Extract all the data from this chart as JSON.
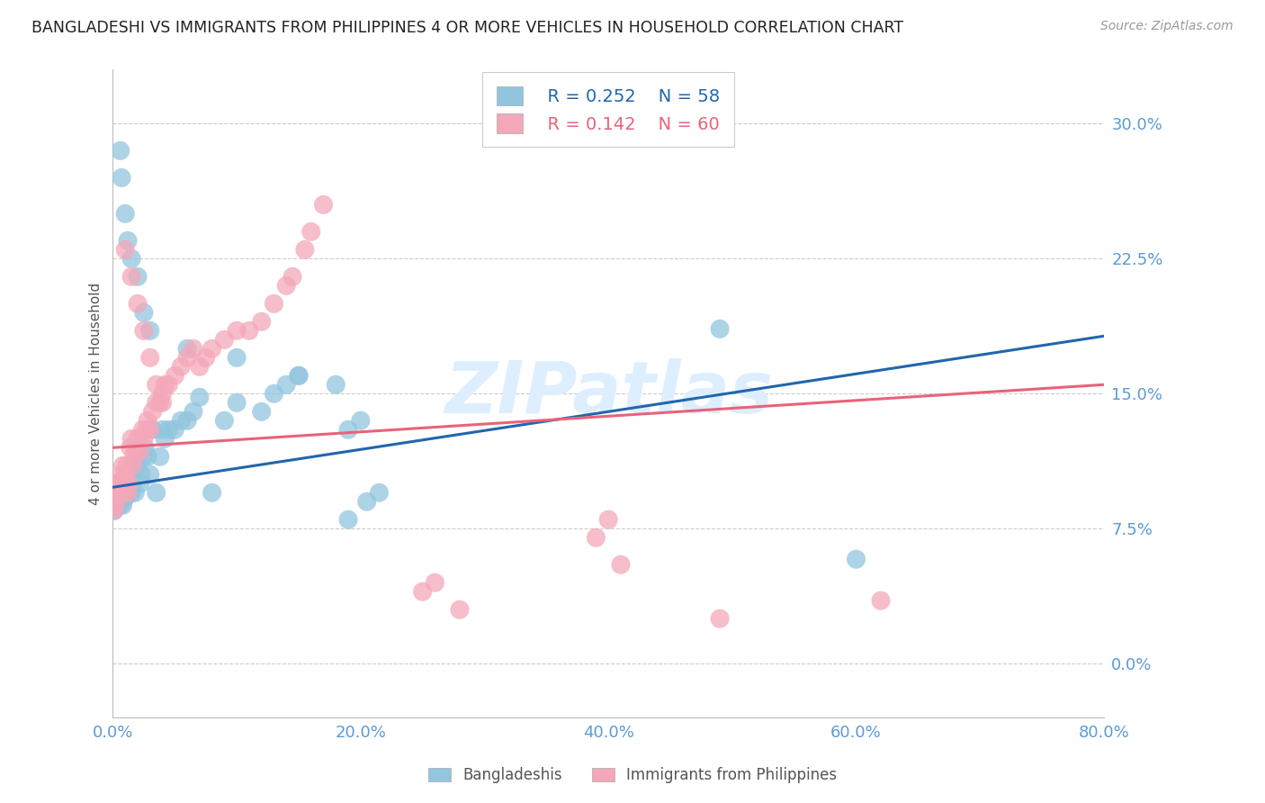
{
  "title": "BANGLADESHI VS IMMIGRANTS FROM PHILIPPINES 4 OR MORE VEHICLES IN HOUSEHOLD CORRELATION CHART",
  "source": "Source: ZipAtlas.com",
  "ylabel": "4 or more Vehicles in Household",
  "xlim": [
    0.0,
    0.8
  ],
  "ylim": [
    -0.03,
    0.33
  ],
  "y_tick_vals": [
    0.0,
    0.075,
    0.15,
    0.225,
    0.3
  ],
  "x_tick_vals": [
    0.0,
    0.2,
    0.4,
    0.6,
    0.8
  ],
  "y_tick_labels": [
    "0.0%",
    "7.5%",
    "15.0%",
    "22.5%",
    "30.0%"
  ],
  "x_tick_labels": [
    "0.0%",
    "20.0%",
    "40.0%",
    "60.0%",
    "80.0%"
  ],
  "legend_blue_R": "R = 0.252",
  "legend_blue_N": "N = 58",
  "legend_pink_R": "R = 0.142",
  "legend_pink_N": "N = 60",
  "legend_label_blue": "Bangladeshis",
  "legend_label_pink": "Immigrants from Philippines",
  "blue_color": "#92c5de",
  "pink_color": "#f4a7b9",
  "line_blue_color": "#2166ac",
  "line_pink_color": "#e8637a",
  "background_color": "#ffffff",
  "grid_color": "#cccccc",
  "tick_color": "#5b9bd5",
  "watermark_text": "ZIPatlas",
  "watermark_color": "#ddeeff",
  "watermark_fontsize": 58,
  "blue_line_start_y": 0.098,
  "blue_line_end_y": 0.182,
  "pink_line_start_y": 0.12,
  "pink_line_end_y": 0.155,
  "blue_x": [
    0.001,
    0.002,
    0.002,
    0.003,
    0.003,
    0.004,
    0.004,
    0.005,
    0.005,
    0.006,
    0.006,
    0.007,
    0.007,
    0.008,
    0.008,
    0.009,
    0.01,
    0.01,
    0.011,
    0.012,
    0.012,
    0.013,
    0.014,
    0.015,
    0.015,
    0.016,
    0.017,
    0.018,
    0.02,
    0.02,
    0.022,
    0.023,
    0.025,
    0.026,
    0.028,
    0.03,
    0.032,
    0.035,
    0.038,
    0.04,
    0.042,
    0.045,
    0.05,
    0.055,
    0.06,
    0.065,
    0.07,
    0.08,
    0.09,
    0.1,
    0.12,
    0.13,
    0.14,
    0.15,
    0.19,
    0.2,
    0.49,
    0.6
  ],
  "blue_y": [
    0.085,
    0.09,
    0.095,
    0.088,
    0.092,
    0.095,
    0.1,
    0.09,
    0.095,
    0.088,
    0.092,
    0.095,
    0.1,
    0.088,
    0.095,
    0.095,
    0.092,
    0.098,
    0.1,
    0.095,
    0.1,
    0.105,
    0.1,
    0.095,
    0.1,
    0.105,
    0.11,
    0.095,
    0.11,
    0.115,
    0.1,
    0.105,
    0.115,
    0.12,
    0.115,
    0.105,
    0.13,
    0.095,
    0.115,
    0.13,
    0.125,
    0.13,
    0.13,
    0.135,
    0.135,
    0.14,
    0.148,
    0.095,
    0.135,
    0.145,
    0.14,
    0.15,
    0.155,
    0.16,
    0.13,
    0.135,
    0.186,
    0.058
  ],
  "pink_x": [
    0.001,
    0.001,
    0.002,
    0.003,
    0.003,
    0.004,
    0.004,
    0.005,
    0.005,
    0.006,
    0.006,
    0.007,
    0.008,
    0.008,
    0.009,
    0.01,
    0.01,
    0.011,
    0.012,
    0.013,
    0.014,
    0.015,
    0.016,
    0.017,
    0.018,
    0.02,
    0.022,
    0.024,
    0.025,
    0.027,
    0.028,
    0.03,
    0.032,
    0.035,
    0.038,
    0.04,
    0.042,
    0.045,
    0.05,
    0.055,
    0.06,
    0.065,
    0.07,
    0.075,
    0.08,
    0.09,
    0.1,
    0.11,
    0.12,
    0.13,
    0.14,
    0.145,
    0.155,
    0.16,
    0.17,
    0.39,
    0.4,
    0.41,
    0.49,
    0.62
  ],
  "pink_y": [
    0.085,
    0.09,
    0.088,
    0.092,
    0.1,
    0.095,
    0.1,
    0.095,
    0.1,
    0.095,
    0.1,
    0.105,
    0.1,
    0.11,
    0.095,
    0.1,
    0.105,
    0.11,
    0.095,
    0.1,
    0.12,
    0.125,
    0.11,
    0.115,
    0.12,
    0.125,
    0.118,
    0.13,
    0.125,
    0.13,
    0.135,
    0.13,
    0.14,
    0.145,
    0.145,
    0.15,
    0.155,
    0.155,
    0.16,
    0.165,
    0.17,
    0.175,
    0.165,
    0.17,
    0.175,
    0.18,
    0.185,
    0.185,
    0.19,
    0.2,
    0.21,
    0.215,
    0.23,
    0.24,
    0.255,
    0.07,
    0.08,
    0.055,
    0.025,
    0.035
  ],
  "extra_blue_x": [
    0.006,
    0.007,
    0.01,
    0.012,
    0.015,
    0.02,
    0.025,
    0.03,
    0.06,
    0.1,
    0.15,
    0.18,
    0.19,
    0.205,
    0.215
  ],
  "extra_blue_y": [
    0.285,
    0.27,
    0.25,
    0.235,
    0.225,
    0.215,
    0.195,
    0.185,
    0.175,
    0.17,
    0.16,
    0.155,
    0.08,
    0.09,
    0.095
  ],
  "extra_pink_x": [
    0.01,
    0.015,
    0.02,
    0.025,
    0.03,
    0.035,
    0.04,
    0.25,
    0.26,
    0.28
  ],
  "extra_pink_y": [
    0.23,
    0.215,
    0.2,
    0.185,
    0.17,
    0.155,
    0.145,
    0.04,
    0.045,
    0.03
  ]
}
